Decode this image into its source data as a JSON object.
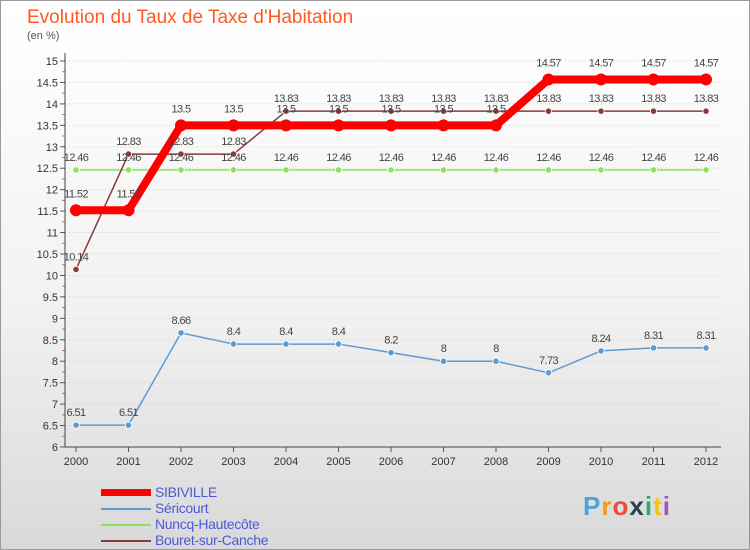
{
  "header": {
    "title": "Evolution du Taux de Taxe d'Habitation",
    "unit": "(en %)"
  },
  "chart_data": {
    "type": "line",
    "title": "Evolution du Taux de Taxe d'Habitation",
    "ylabel": "(en %)",
    "xlabel": "",
    "x": [
      "2000",
      "2001",
      "2002",
      "2003",
      "2004",
      "2005",
      "2006",
      "2007",
      "2008",
      "2009",
      "2010",
      "2011",
      "2012"
    ],
    "ylim": [
      6,
      15
    ],
    "yticks": [
      "6",
      "6.5",
      "7",
      "7.5",
      "8",
      "8.5",
      "9",
      "9.5",
      "10",
      "10.5",
      "11",
      "11.5",
      "12",
      "12.5",
      "13",
      "13.5",
      "14",
      "14.5",
      "15"
    ],
    "grid": "dashed-horizontal",
    "legend_position": "bottom-left",
    "series": [
      {
        "name": "SIBIVILLE",
        "color": "#ff0000",
        "width": 8,
        "values": [
          11.52,
          11.52,
          13.5,
          13.5,
          13.5,
          13.5,
          13.5,
          13.5,
          13.5,
          14.57,
          14.57,
          14.57,
          14.57
        ],
        "labels": [
          "11.52",
          "11.52",
          "13.5",
          "13.5",
          "13.5",
          "13.5",
          "13.5",
          "13.5",
          "13.5",
          "14.57",
          "14.57",
          "14.57",
          "14.57"
        ]
      },
      {
        "name": "Séricourt",
        "color": "#5b9bd5",
        "width": 1.5,
        "values": [
          6.51,
          6.51,
          8.66,
          8.4,
          8.4,
          8.4,
          8.2,
          8,
          8,
          7.73,
          8.24,
          8.31,
          8.31
        ],
        "labels": [
          "6.51",
          "6.51",
          "8.66",
          "8.4",
          "8.4",
          "8.4",
          "8.2",
          "8",
          "8",
          "7.73",
          "8.24",
          "8.31",
          "8.31"
        ]
      },
      {
        "name": "Nuncq-Hautecôte",
        "color": "#90e060",
        "width": 1.5,
        "values": [
          12.46,
          12.46,
          12.46,
          12.46,
          12.46,
          12.46,
          12.46,
          12.46,
          12.46,
          12.46,
          12.46,
          12.46,
          12.46
        ],
        "labels": [
          "12.46",
          "12.46",
          "12.46",
          "12.46",
          "12.46",
          "12.46",
          "12.46",
          "12.46",
          "12.46",
          "12.46",
          "12.46",
          "12.46",
          "12.46"
        ]
      },
      {
        "name": "Bouret-sur-Canche",
        "color": "#8b3a3a",
        "width": 1.5,
        "values": [
          10.14,
          12.83,
          12.83,
          12.83,
          13.83,
          13.83,
          13.83,
          13.83,
          13.83,
          13.83,
          13.83,
          13.83,
          13.83
        ],
        "labels": [
          "10.14",
          "12.83",
          "12.83",
          "12.83",
          "13.83",
          "13.83",
          "13.83",
          "13.83",
          "13.83",
          "13.83",
          "13.83",
          "13.83",
          "13.83"
        ]
      }
    ]
  },
  "logo": {
    "letters": [
      "P",
      "r",
      "o",
      "x",
      "i",
      "t",
      "i"
    ],
    "colors": [
      "#4aa3df",
      "#f39c12",
      "#e74c3c",
      "#2c3e50",
      "#27ae60",
      "#f1c40f",
      "#9b59b6"
    ]
  }
}
